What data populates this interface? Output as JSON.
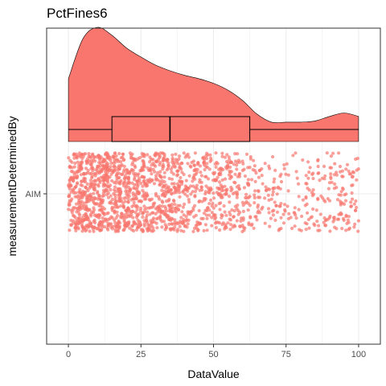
{
  "chart_data": {
    "type": "raincloud",
    "title": "PctFines6",
    "xlabel": "DataValue",
    "ylabel": "measurementDeterminedBy",
    "xlim": [
      -7.5,
      107.5
    ],
    "x_ticks": [
      0,
      25,
      50,
      75,
      100
    ],
    "x_tick_labels": [
      "0",
      "25",
      "50",
      "75",
      "100"
    ],
    "categories": [
      "AIM"
    ],
    "grid": true,
    "legend": "none",
    "colors": {
      "fill": "#f8766d",
      "outline": "#000000",
      "grid": "#ebebeb",
      "panel_border": "#333333"
    },
    "boxplot": {
      "min": 0,
      "q1": 15,
      "median": 35,
      "q3": 62.5,
      "max": 100
    },
    "density": {
      "x": [
        0,
        5,
        10,
        15,
        20,
        25,
        30,
        35,
        40,
        45,
        50,
        55,
        60,
        65,
        70,
        75,
        80,
        85,
        90,
        95,
        100
      ],
      "y": [
        0.55,
        0.9,
        1.0,
        0.93,
        0.82,
        0.74,
        0.67,
        0.62,
        0.58,
        0.55,
        0.51,
        0.45,
        0.36,
        0.24,
        0.17,
        0.17,
        0.17,
        0.18,
        0.22,
        0.25,
        0.22
      ]
    },
    "points": {
      "n": 1800,
      "range": [
        0,
        100
      ],
      "shape": "jittered strip"
    }
  }
}
